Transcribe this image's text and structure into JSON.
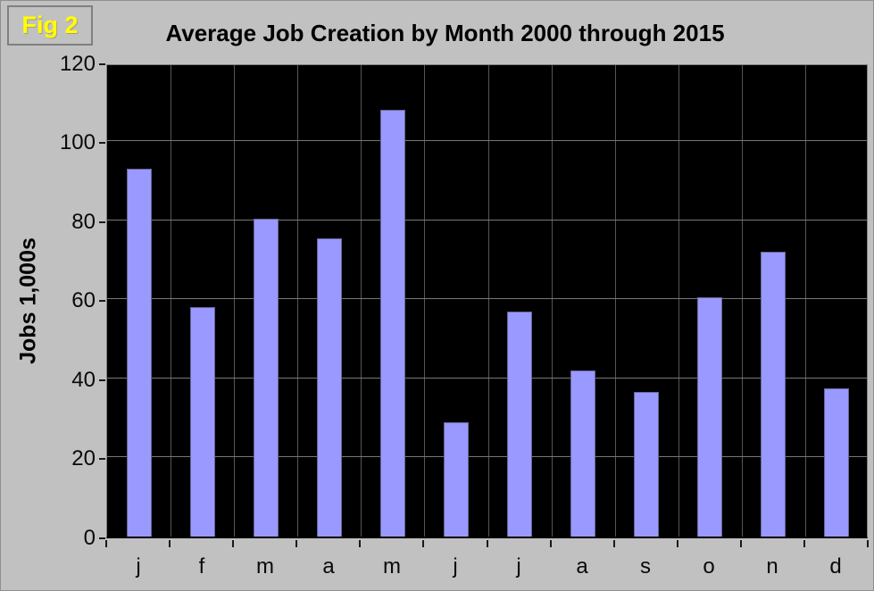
{
  "figure": {
    "label": "Fig 2"
  },
  "chart_data": {
    "type": "bar",
    "title": "Average Job Creation by Month 2000 through 2015",
    "ylabel": "Jobs 1,000s",
    "xlabel": "",
    "categories": [
      "j",
      "f",
      "m",
      "a",
      "m",
      "j",
      "j",
      "a",
      "s",
      "o",
      "n",
      "d"
    ],
    "values": [
      93,
      58,
      80.5,
      75.5,
      108,
      29,
      57,
      42,
      36.5,
      60.5,
      72,
      37.5
    ],
    "yticks": [
      0,
      20,
      40,
      60,
      80,
      100,
      120
    ],
    "ylim": [
      0,
      120
    ],
    "grid": true,
    "legend": "none",
    "plot_background": "#000000",
    "bar_gap_ratio": 0.61
  },
  "colors": {
    "page_bg": "#c1c1c1",
    "plot_bg": "#000000",
    "bar_fill": "#9999ff",
    "bar_border": "#666699",
    "gridline_h": "#787878",
    "gridline_v": "#565656",
    "plot_border": "#818181",
    "axis": "#000000",
    "title_text": "#000000",
    "tick_text": "#0a0a0a",
    "fig_label_text": "#ffff00",
    "fig_label_border": "#808080"
  }
}
